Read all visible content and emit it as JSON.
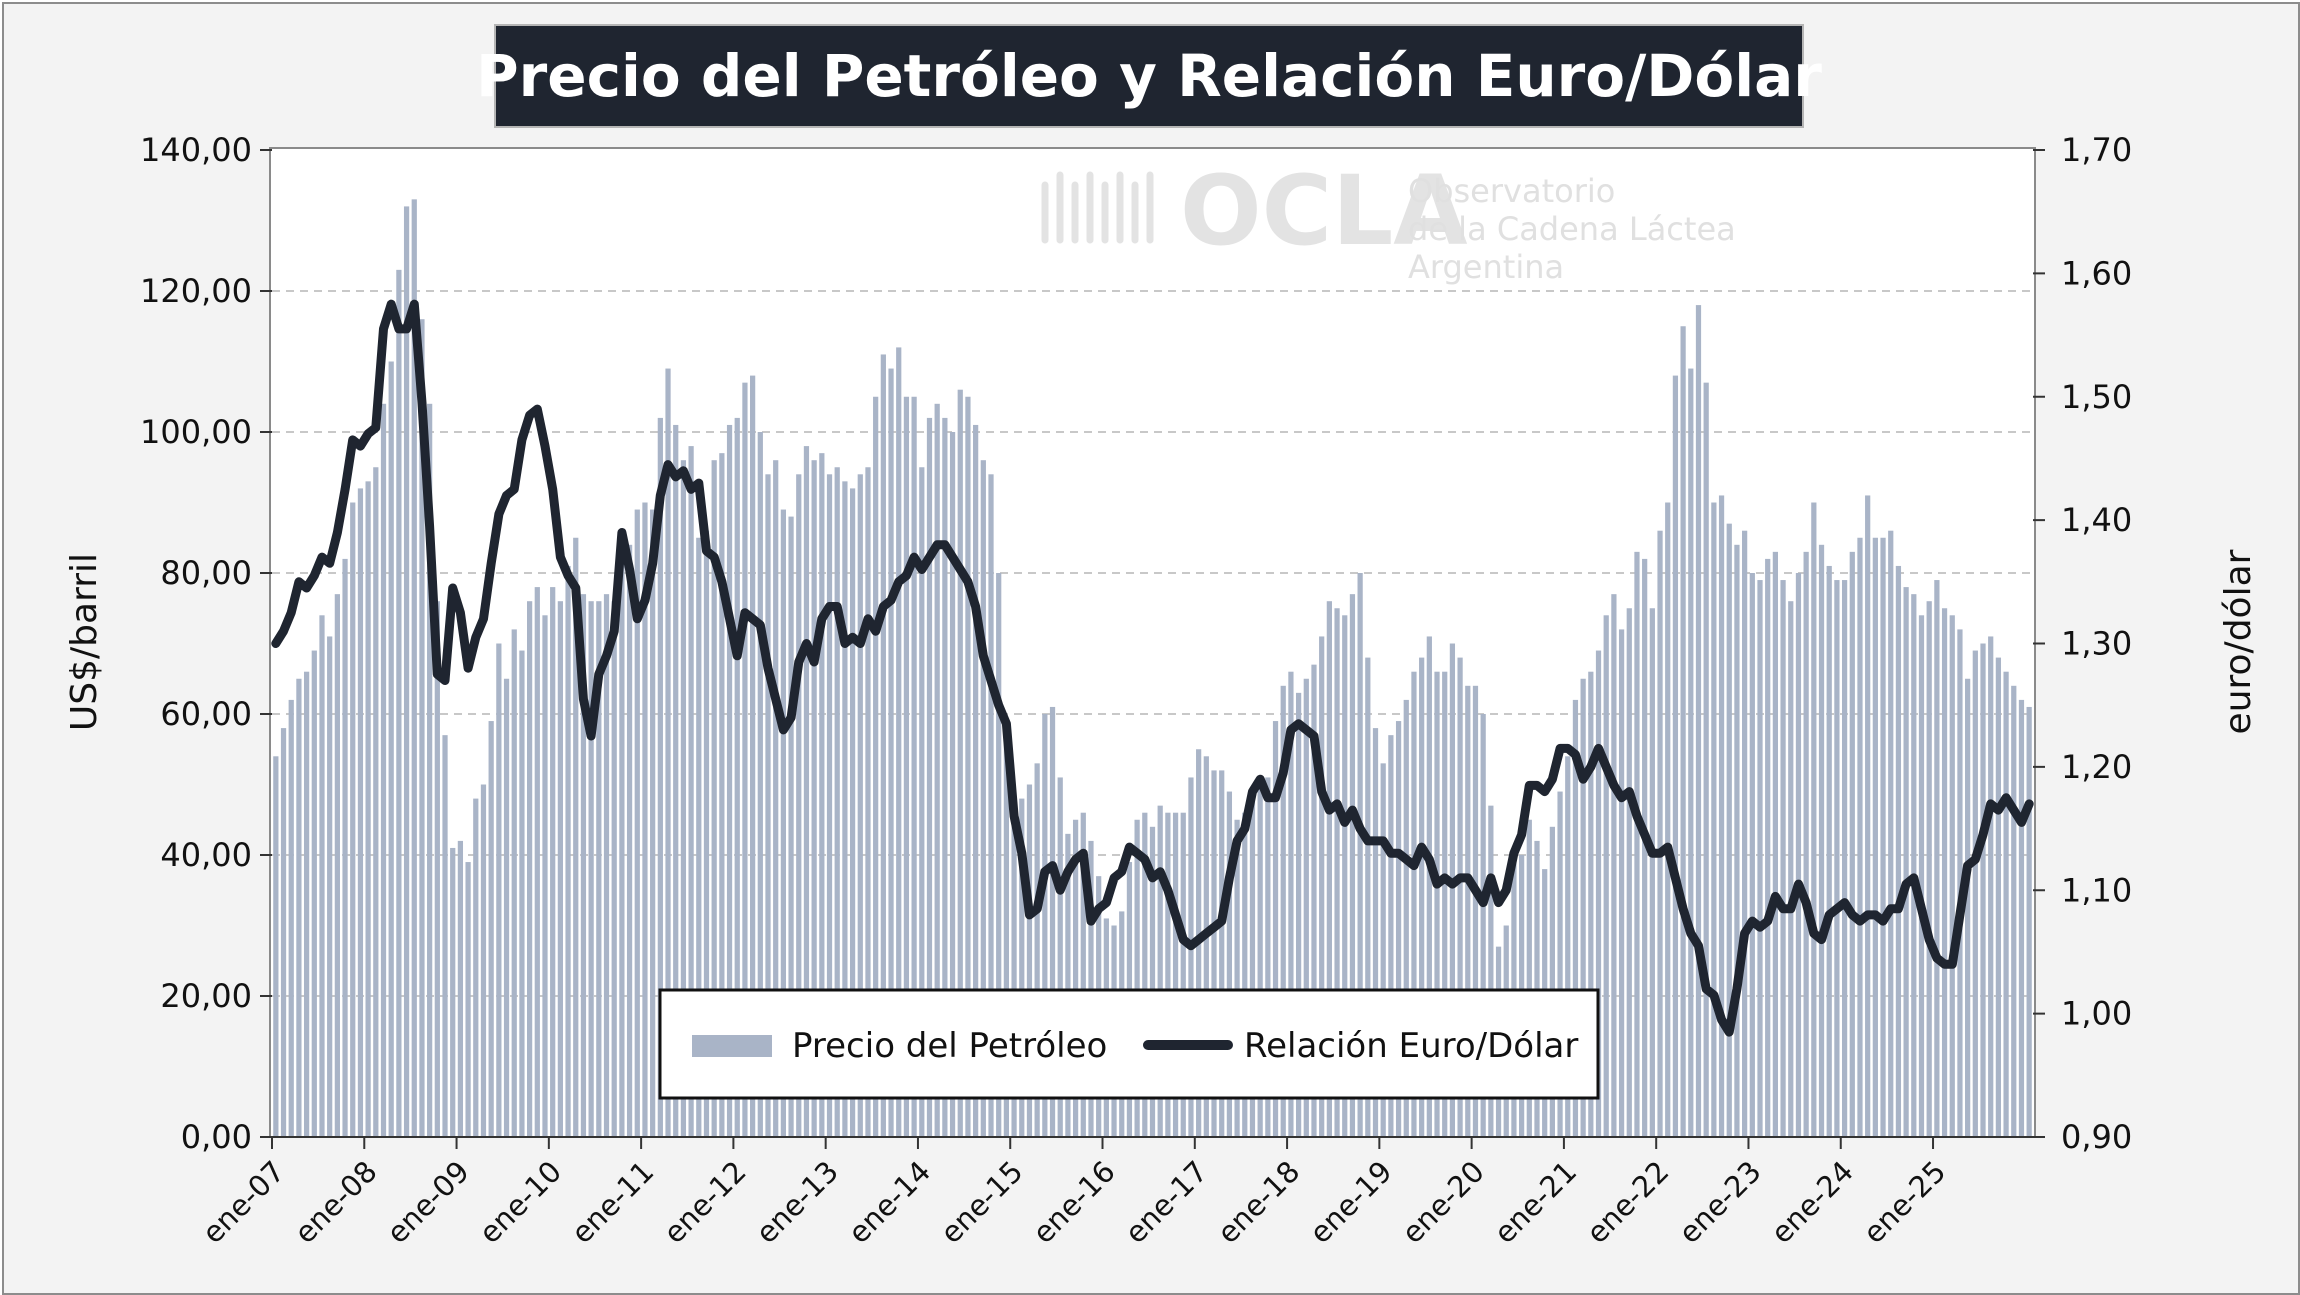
{
  "chart_data": {
    "type": "bar+line",
    "title": "Precio del Petróleo y Relación Euro/Dólar",
    "ylabel_left": "US$/barril",
    "ylabel_right": "euro/dólar",
    "ylim_left": [
      0,
      140
    ],
    "ylim_right": [
      0.9,
      1.7
    ],
    "yticks_left": [
      "0,00",
      "20,00",
      "40,00",
      "60,00",
      "80,00",
      "100,00",
      "120,00",
      "140,00"
    ],
    "yticks_right": [
      "0,90",
      "1,00",
      "1,10",
      "1,20",
      "1,30",
      "1,40",
      "1,50",
      "1,60",
      "1,70"
    ],
    "xticks": [
      "ene-07",
      "ene-08",
      "ene-09",
      "ene-10",
      "ene-11",
      "ene-12",
      "ene-13",
      "ene-14",
      "ene-15",
      "ene-16",
      "ene-17",
      "ene-18",
      "ene-19",
      "ene-20",
      "ene-21",
      "ene-22",
      "ene-23",
      "ene-24",
      "ene-25"
    ],
    "grid": "horizontal dashed",
    "legend_placement": "bottom-center",
    "series": [
      {
        "name": "Precio del Petróleo",
        "kind": "bar",
        "color": "#a9b4c7",
        "monthly_start": "ene-07",
        "values": [
          54,
          58,
          62,
          65,
          66,
          69,
          74,
          71,
          77,
          82,
          90,
          92,
          93,
          95,
          104,
          110,
          123,
          132,
          133,
          116,
          104,
          76,
          57,
          41,
          42,
          39,
          48,
          50,
          59,
          70,
          65,
          72,
          69,
          76,
          78,
          74,
          78,
          76,
          81,
          85,
          77,
          76,
          76,
          77,
          76,
          82,
          84,
          89,
          90,
          89,
          102,
          109,
          101,
          96,
          98,
          85,
          86,
          96,
          97,
          101,
          102,
          107,
          108,
          100,
          94,
          96,
          89,
          88,
          94,
          98,
          96,
          97,
          94,
          95,
          93,
          92,
          94,
          95,
          105,
          111,
          109,
          112,
          105,
          105,
          95,
          102,
          104,
          102,
          100,
          106,
          105,
          101,
          96,
          94,
          80,
          59,
          47,
          48,
          50,
          53,
          60,
          61,
          51,
          43,
          45,
          46,
          42,
          37,
          31,
          30,
          32,
          39,
          45,
          46,
          44,
          47,
          46,
          46,
          46,
          51,
          55,
          54,
          52,
          52,
          49,
          45,
          46,
          48,
          50,
          51,
          59,
          64,
          66,
          63,
          65,
          67,
          71,
          76,
          75,
          74,
          77,
          80,
          68,
          58,
          53,
          57,
          59,
          62,
          66,
          68,
          71,
          66,
          66,
          70,
          68,
          64,
          64,
          60,
          47,
          27,
          30,
          40,
          40,
          45,
          42,
          38,
          44,
          49,
          54,
          62,
          65,
          66,
          69,
          74,
          77,
          72,
          75,
          83,
          82,
          75,
          86,
          90,
          108,
          115,
          109,
          118,
          107,
          90,
          91,
          87,
          84,
          86,
          80,
          79,
          82,
          83,
          79,
          76,
          80,
          83,
          90,
          84,
          81,
          79,
          79,
          83,
          85,
          91,
          85,
          85,
          86,
          81,
          78,
          77,
          74,
          76,
          79,
          75,
          74,
          72,
          65,
          69,
          70,
          71,
          68,
          66,
          64,
          62,
          61
        ]
      },
      {
        "name": "Relación Euro/Dólar",
        "kind": "line",
        "color": "#1f2530",
        "monthly_start": "ene-07",
        "values": [
          1.3,
          1.31,
          1.325,
          1.35,
          1.345,
          1.355,
          1.37,
          1.365,
          1.39,
          1.425,
          1.465,
          1.46,
          1.47,
          1.475,
          1.555,
          1.575,
          1.555,
          1.555,
          1.575,
          1.495,
          1.395,
          1.275,
          1.27,
          1.345,
          1.325,
          1.28,
          1.305,
          1.32,
          1.365,
          1.405,
          1.42,
          1.425,
          1.465,
          1.485,
          1.49,
          1.46,
          1.425,
          1.37,
          1.355,
          1.345,
          1.255,
          1.225,
          1.275,
          1.29,
          1.31,
          1.39,
          1.36,
          1.32,
          1.335,
          1.365,
          1.42,
          1.445,
          1.435,
          1.44,
          1.425,
          1.43,
          1.375,
          1.37,
          1.35,
          1.32,
          1.29,
          1.325,
          1.32,
          1.315,
          1.28,
          1.255,
          1.23,
          1.24,
          1.285,
          1.3,
          1.285,
          1.32,
          1.33,
          1.33,
          1.3,
          1.305,
          1.3,
          1.32,
          1.31,
          1.33,
          1.335,
          1.35,
          1.355,
          1.37,
          1.36,
          1.37,
          1.38,
          1.38,
          1.37,
          1.36,
          1.35,
          1.33,
          1.29,
          1.27,
          1.25,
          1.235,
          1.16,
          1.13,
          1.08,
          1.085,
          1.115,
          1.12,
          1.1,
          1.115,
          1.125,
          1.13,
          1.075,
          1.085,
          1.09,
          1.11,
          1.115,
          1.135,
          1.13,
          1.125,
          1.11,
          1.115,
          1.1,
          1.08,
          1.06,
          1.055,
          1.06,
          1.065,
          1.07,
          1.075,
          1.11,
          1.14,
          1.15,
          1.18,
          1.19,
          1.175,
          1.175,
          1.195,
          1.23,
          1.235,
          1.23,
          1.225,
          1.18,
          1.165,
          1.17,
          1.155,
          1.165,
          1.15,
          1.14,
          1.14,
          1.14,
          1.13,
          1.13,
          1.125,
          1.12,
          1.135,
          1.125,
          1.105,
          1.11,
          1.105,
          1.11,
          1.11,
          1.1,
          1.09,
          1.11,
          1.09,
          1.1,
          1.13,
          1.145,
          1.185,
          1.185,
          1.18,
          1.19,
          1.215,
          1.215,
          1.21,
          1.19,
          1.2,
          1.215,
          1.2,
          1.185,
          1.175,
          1.18,
          1.16,
          1.145,
          1.13,
          1.13,
          1.135,
          1.11,
          1.085,
          1.065,
          1.055,
          1.02,
          1.015,
          0.995,
          0.985,
          1.02,
          1.065,
          1.075,
          1.07,
          1.075,
          1.095,
          1.085,
          1.085,
          1.105,
          1.09,
          1.065,
          1.06,
          1.08,
          1.085,
          1.09,
          1.08,
          1.075,
          1.08,
          1.08,
          1.075,
          1.085,
          1.085,
          1.105,
          1.11,
          1.085,
          1.06,
          1.045,
          1.04,
          1.04,
          1.08,
          1.12,
          1.125,
          1.145,
          1.17,
          1.165,
          1.175,
          1.165,
          1.155,
          1.17
        ]
      }
    ]
  },
  "watermark": {
    "brand": "OCLA",
    "line1": "Observatorio",
    "line2": "de la Cadena Láctea",
    "line3": "Argentina"
  }
}
